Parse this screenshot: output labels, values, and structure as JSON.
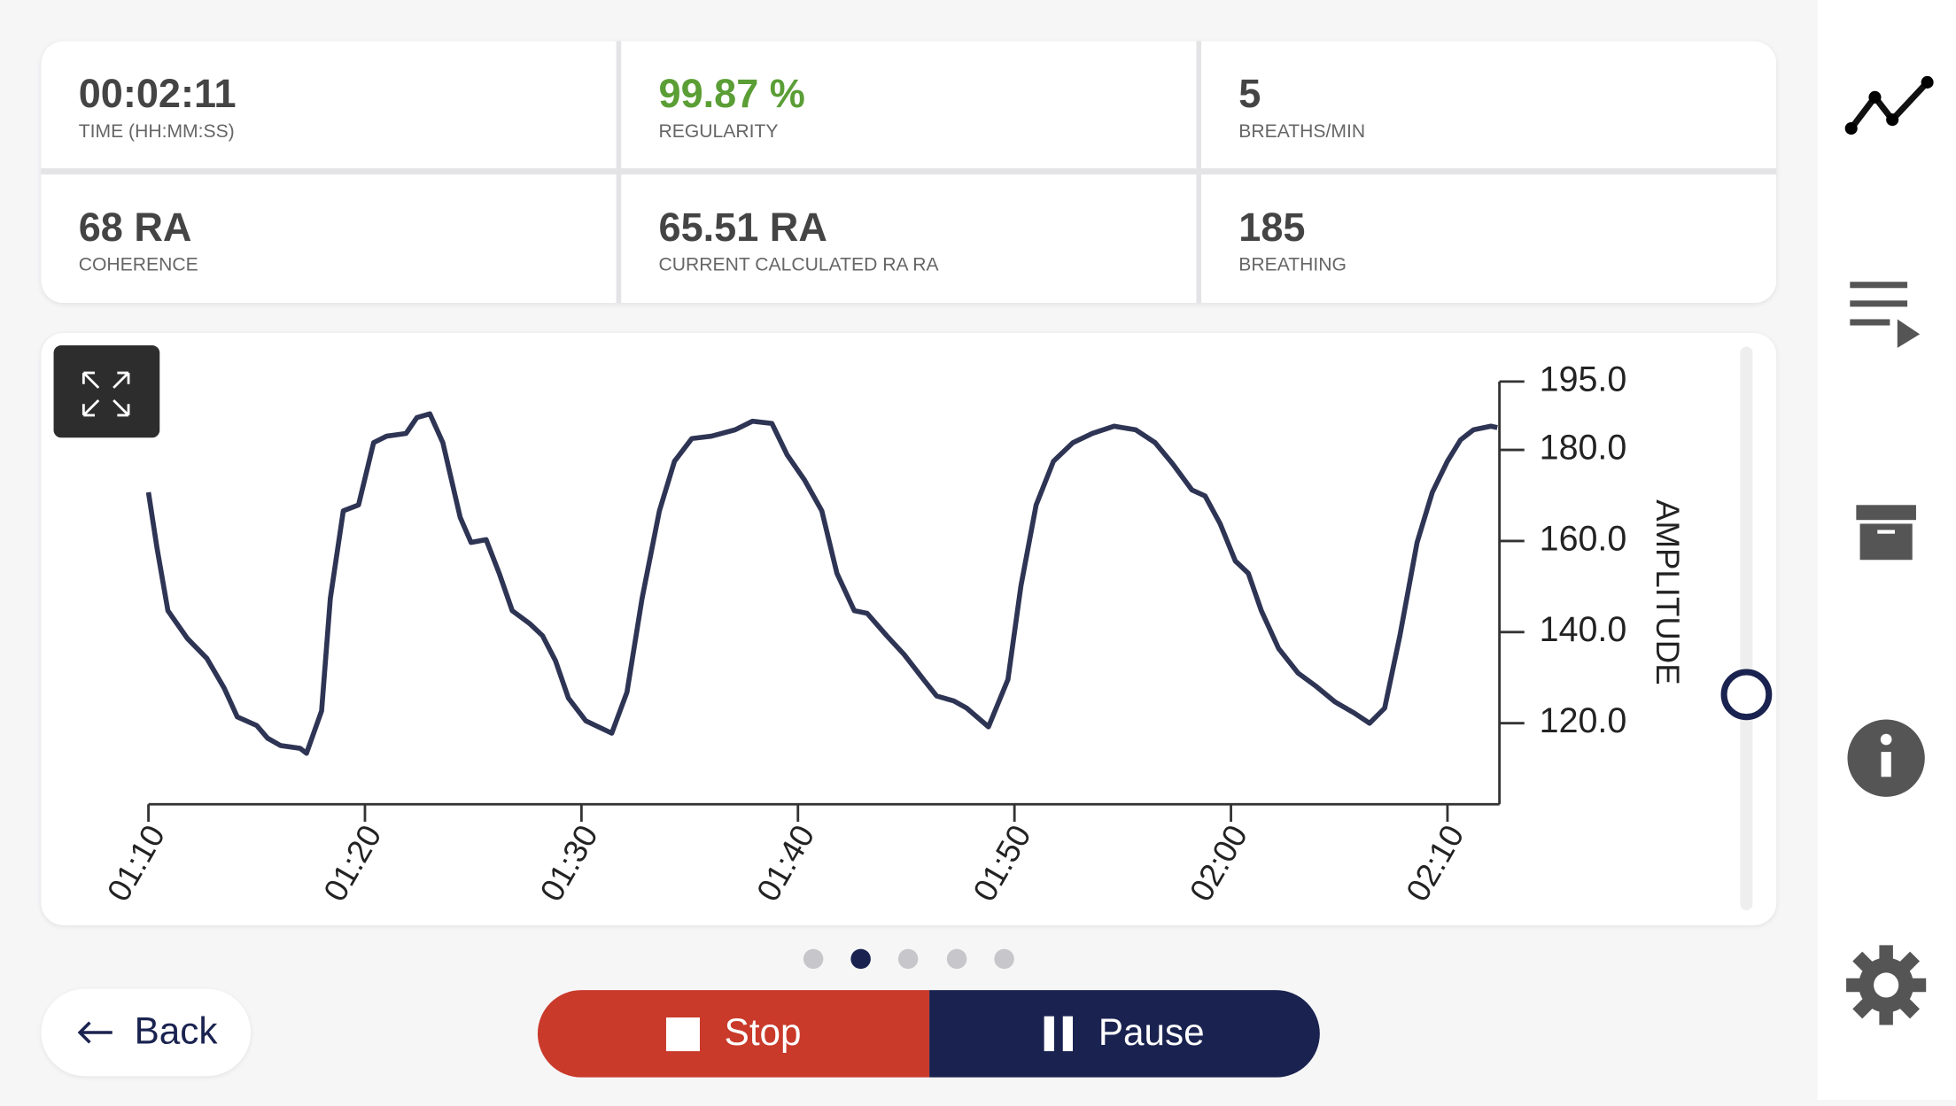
{
  "stats": [
    {
      "value": "00:02:11",
      "label": "TIME (HH:MM:SS)"
    },
    {
      "value": "99.87 %",
      "label": "REGULARITY"
    },
    {
      "value": "5",
      "label": "BREATHS/MIN"
    },
    {
      "value": "68 RA",
      "label": "COHERENCE"
    },
    {
      "value": "65.51 RA",
      "label": "CURRENT CALCULATED RA RA"
    },
    {
      "value": "185",
      "label": "BREATHING"
    }
  ],
  "chart_data": {
    "type": "line",
    "y_label": "AMPLITUDE",
    "color": "#2e3454",
    "grid": false,
    "x": [
      70.0,
      70.4,
      70.9,
      71.8,
      72.7,
      73.5,
      74.1,
      75.0,
      75.5,
      76.1,
      77.0,
      77.3,
      78.0,
      78.4,
      79.0,
      79.7,
      80.4,
      81.0,
      81.9,
      82.4,
      83.0,
      83.6,
      84.4,
      84.9,
      85.6,
      86.2,
      86.8,
      87.6,
      88.2,
      88.8,
      89.4,
      90.2,
      91.4,
      92.1,
      92.8,
      93.6,
      94.3,
      95.1,
      96.0,
      97.1,
      97.9,
      98.8,
      99.5,
      100.3,
      101.1,
      101.8,
      102.6,
      103.2,
      104.1,
      104.9,
      105.8,
      106.4,
      107.2,
      107.8,
      108.8,
      109.7,
      110.3,
      111.0,
      111.8,
      112.7,
      113.6,
      114.6,
      115.6,
      116.5,
      117.3,
      118.2,
      118.8,
      119.5,
      120.2,
      120.8,
      121.4,
      122.2,
      123.1,
      123.9,
      124.8,
      125.7,
      126.4,
      127.1,
      127.8,
      128.6,
      129.3,
      130.0,
      130.6,
      131.2,
      132.0,
      132.3
    ],
    "values": [
      170.7,
      158.4,
      144.7,
      138.6,
      134.2,
      127.7,
      121.4,
      119.5,
      116.7,
      115.1,
      114.5,
      113.4,
      122.7,
      147.4,
      166.6,
      167.9,
      181.6,
      183.0,
      183.6,
      187.1,
      187.9,
      181.6,
      165.2,
      159.7,
      160.3,
      152.9,
      144.7,
      141.9,
      139.2,
      133.7,
      125.5,
      120.5,
      117.8,
      126.8,
      147.4,
      166.6,
      177.5,
      182.5,
      183.0,
      184.4,
      186.3,
      185.8,
      178.9,
      173.4,
      166.6,
      152.9,
      144.7,
      144.1,
      139.2,
      135.1,
      129.6,
      126.0,
      124.9,
      123.3,
      119.2,
      129.6,
      150.1,
      167.9,
      177.5,
      181.6,
      183.6,
      185.2,
      184.4,
      181.6,
      177.0,
      171.2,
      169.9,
      163.8,
      155.6,
      152.9,
      144.7,
      136.4,
      131.0,
      128.2,
      124.7,
      122.2,
      120.0,
      123.3,
      139.2,
      159.7,
      170.7,
      177.5,
      182.2,
      184.4,
      185.2,
      184.9
    ],
    "xlim": [
      70,
      132.4
    ],
    "xticks": [
      {
        "value": 70,
        "label": "01:10"
      },
      {
        "value": 80,
        "label": "01:20"
      },
      {
        "value": 90,
        "label": "01:30"
      },
      {
        "value": 100,
        "label": "01:40"
      },
      {
        "value": 110,
        "label": "01:50"
      },
      {
        "value": 120,
        "label": "02:00"
      },
      {
        "value": 130,
        "label": "02:10"
      }
    ],
    "ylim": [
      102.2,
      195
    ],
    "yticks": [
      {
        "value": 120,
        "label": "120.0"
      },
      {
        "value": 140,
        "label": "140.0"
      },
      {
        "value": 160,
        "label": "160.0"
      },
      {
        "value": 180,
        "label": "180.0"
      },
      {
        "value": 195,
        "label": "195.0"
      }
    ]
  },
  "buttons": {
    "back": "Back",
    "stop": "Stop",
    "pause": "Pause"
  }
}
